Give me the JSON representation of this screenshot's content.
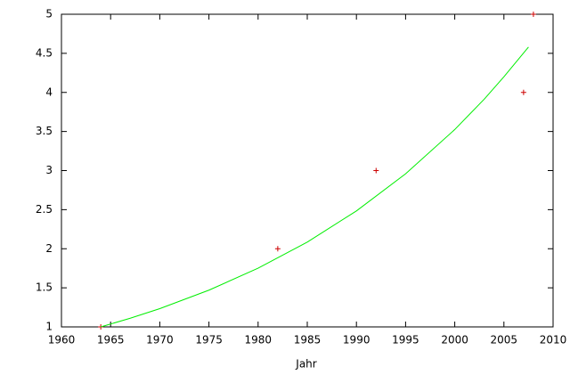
{
  "chart_data": {
    "type": "scatter",
    "xlabel": "Jahr",
    "xlim": [
      1960,
      2010
    ],
    "xticks": [
      1960,
      1965,
      1970,
      1975,
      1980,
      1985,
      1990,
      1995,
      2000,
      2005,
      2010
    ],
    "ylim": [
      1,
      5
    ],
    "yticks": [
      1,
      1.5,
      2,
      2.5,
      3,
      3.5,
      4,
      4.5,
      5
    ],
    "series": [
      {
        "style": "points",
        "color": "#cc0000",
        "x": [
          1964,
          1982,
          1992,
          2007,
          2008
        ],
        "values": [
          1,
          2,
          3,
          4,
          5
        ]
      },
      {
        "style": "line",
        "color": "#00ee00",
        "x": [
          1964,
          1967,
          1970,
          1975,
          1980,
          1985,
          1990,
          1995,
          2000,
          2003,
          2005,
          2007.5
        ],
        "values": [
          1.0,
          1.111,
          1.234,
          1.47,
          1.751,
          2.085,
          2.484,
          2.959,
          3.525,
          3.914,
          4.2,
          4.58
        ]
      }
    ]
  }
}
